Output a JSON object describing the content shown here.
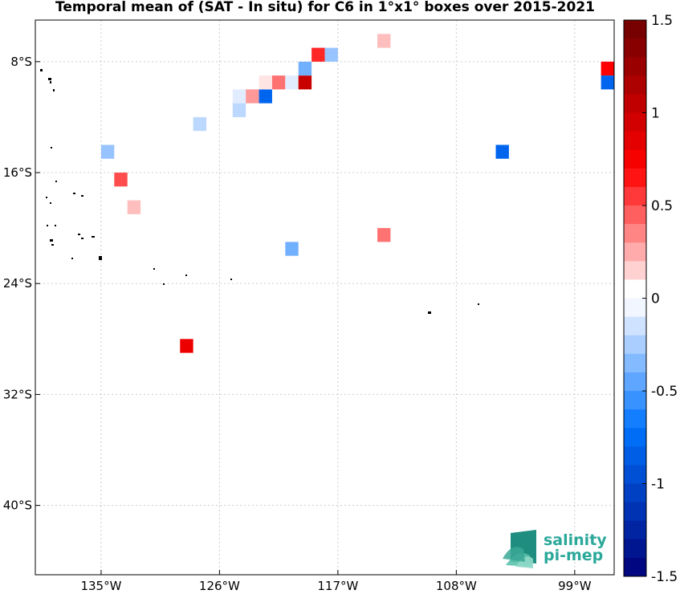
{
  "chart_data": {
    "type": "heatmap",
    "title": "Temporal mean of (SAT - In situ) for C6 in 1°x1° boxes over 2015-2021",
    "xlabel": "",
    "ylabel": "",
    "x_ticks": [
      "135°W",
      "126°W",
      "117°W",
      "108°W",
      "99°W"
    ],
    "y_ticks": [
      "8°S",
      "16°S",
      "24°S",
      "32°S",
      "40°S"
    ],
    "x_tick_values": [
      -135,
      -126,
      -117,
      -108,
      -99
    ],
    "y_tick_values": [
      -8,
      -16,
      -24,
      -32,
      -40
    ],
    "xlim": [
      -140,
      -96
    ],
    "ylim": [
      -45,
      -5
    ],
    "grid": true,
    "colorbar": {
      "range": [
        -1.5,
        1.5
      ],
      "step": 0.1,
      "ticks": [
        "1.5",
        "1",
        "0.5",
        "0",
        "-0.5",
        "-1",
        "-1.5"
      ],
      "tick_values": [
        1.5,
        1,
        0.5,
        0,
        -0.5,
        -1,
        -1.5
      ]
    },
    "cells": [
      {
        "lon": -132.5,
        "lat": -18.5,
        "value": 0.2
      },
      {
        "lon": -134.5,
        "lat": -14.5,
        "value": -0.3
      },
      {
        "lon": -133.5,
        "lat": -16.5,
        "value": 0.5
      },
      {
        "lon": -127.5,
        "lat": -12.5,
        "value": -0.2
      },
      {
        "lon": -124.5,
        "lat": -10.5,
        "value": -0.1
      },
      {
        "lon": -124.5,
        "lat": -11.5,
        "value": -0.2
      },
      {
        "lon": -123.5,
        "lat": -10.5,
        "value": 0.3
      },
      {
        "lon": -122.5,
        "lat": -10.5,
        "value": -0.8
      },
      {
        "lon": -122.5,
        "lat": -9.5,
        "value": 0.1
      },
      {
        "lon": -121.5,
        "lat": -9.5,
        "value": 0.4
      },
      {
        "lon": -120.5,
        "lat": -9.5,
        "value": -0.1
      },
      {
        "lon": -119.5,
        "lat": -9.5,
        "value": 1.0
      },
      {
        "lon": -119.5,
        "lat": -8.5,
        "value": -0.4
      },
      {
        "lon": -118.5,
        "lat": -7.5,
        "value": 0.6
      },
      {
        "lon": -117.5,
        "lat": -7.5,
        "value": -0.3
      },
      {
        "lon": -113.5,
        "lat": -6.5,
        "value": 0.2
      },
      {
        "lon": -113.5,
        "lat": -20.5,
        "value": 0.4
      },
      {
        "lon": -120.5,
        "lat": -21.5,
        "value": -0.4
      },
      {
        "lon": -128.5,
        "lat": -28.5,
        "value": 0.8
      },
      {
        "lon": -104.5,
        "lat": -14.5,
        "value": -0.8
      },
      {
        "lon": -96.5,
        "lat": -8.5,
        "value": 0.7
      },
      {
        "lon": -96.5,
        "lat": -9.5,
        "value": -0.8
      }
    ],
    "logo": [
      "salinity",
      "pi-mep"
    ]
  }
}
